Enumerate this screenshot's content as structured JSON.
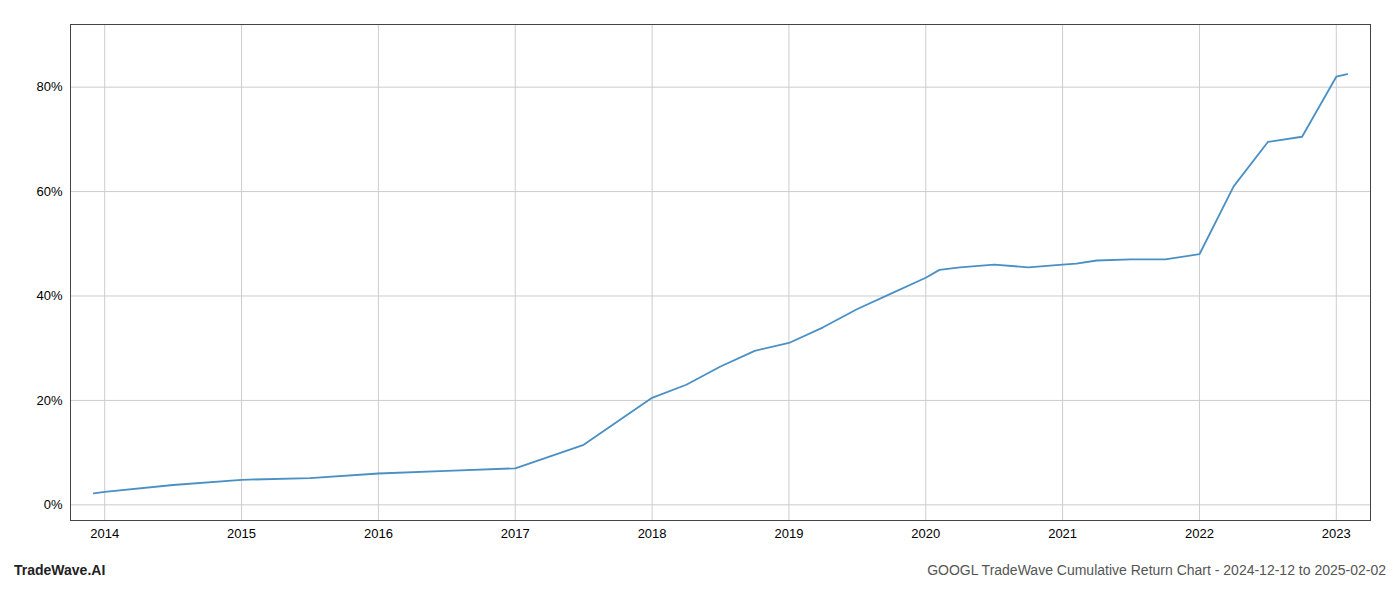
{
  "chart_data": {
    "type": "line",
    "title": "GOOGL TradeWave Cumulative Return Chart - 2024-12-12 to 2025-02-02",
    "annotations": [
      "TradeWave.AI"
    ],
    "x": [
      2013.92,
      2014.0,
      2014.5,
      2015.0,
      2015.5,
      2016.0,
      2016.5,
      2017.0,
      2017.5,
      2018.0,
      2018.25,
      2018.5,
      2018.75,
      2019.0,
      2019.25,
      2019.5,
      2019.75,
      2020.0,
      2020.1,
      2020.25,
      2020.5,
      2020.75,
      2021.0,
      2021.1,
      2021.25,
      2021.5,
      2021.75,
      2022.0,
      2022.25,
      2022.5,
      2022.75,
      2023.0,
      2023.08
    ],
    "values": [
      0.022,
      0.025,
      0.038,
      0.048,
      0.051,
      0.06,
      0.065,
      0.07,
      0.115,
      0.205,
      0.23,
      0.265,
      0.295,
      0.31,
      0.34,
      0.375,
      0.405,
      0.435,
      0.45,
      0.455,
      0.46,
      0.455,
      0.46,
      0.462,
      0.468,
      0.47,
      0.47,
      0.48,
      0.61,
      0.695,
      0.705,
      0.82,
      0.825
    ],
    "color": "#4a90c4",
    "xlim": [
      2013.75,
      2023.25
    ],
    "ylim": [
      -0.03,
      0.92
    ],
    "xticks": [
      2014,
      2015,
      2016,
      2017,
      2018,
      2019,
      2020,
      2021,
      2022,
      2023
    ],
    "yticks": [
      {
        "value": 0,
        "label": "0%"
      },
      {
        "value": 0.2,
        "label": "20%"
      },
      {
        "value": 0.4,
        "label": "40%"
      },
      {
        "value": 0.6,
        "label": "60%"
      },
      {
        "value": 0.8,
        "label": "80%"
      }
    ],
    "grid": true
  }
}
